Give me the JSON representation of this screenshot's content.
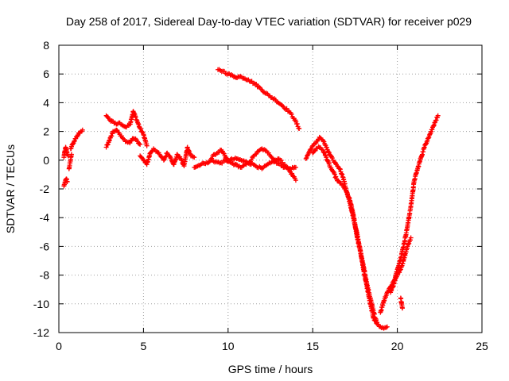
{
  "chart_data": {
    "type": "scatter",
    "title": "Day 258 of 2017, Sidereal Day-to-day VTEC variation (SDTVAR) for receiver p029",
    "xlabel": "GPS time / hours",
    "ylabel": "SDTVAR / TECUs",
    "xlim": [
      0,
      25
    ],
    "ylim": [
      -12,
      8
    ],
    "xticks": [
      0,
      5,
      10,
      15,
      20,
      25
    ],
    "yticks": [
      -12,
      -10,
      -8,
      -6,
      -4,
      -2,
      0,
      2,
      4,
      6,
      8
    ],
    "grid": true,
    "marker": "plus",
    "color": "#ff0000",
    "series": [
      {
        "name": "p029",
        "segments": [
          {
            "x": [
              0.3,
              0.35,
              0.4,
              0.45,
              0.5
            ],
            "y": [
              -1.8,
              -1.6,
              -1.4,
              -1.3,
              -1.5
            ]
          },
          {
            "x": [
              0.3,
              0.35,
              0.4,
              0.45,
              0.5,
              0.55
            ],
            "y": [
              0.2,
              0.6,
              0.9,
              0.7,
              0.4,
              0.3
            ]
          },
          {
            "x": [
              0.7,
              0.8,
              0.9,
              1.0,
              1.1,
              1.2,
              1.3,
              1.4
            ],
            "y": [
              0.8,
              1.1,
              1.3,
              1.5,
              1.7,
              1.9,
              2.0,
              2.1
            ]
          },
          {
            "x": [
              0.6,
              0.75
            ],
            "y": [
              -0.6,
              0.4
            ]
          },
          {
            "x": [
              2.8,
              3.0,
              3.2,
              3.4,
              3.6,
              3.8,
              4.0,
              4.2,
              4.4,
              4.6,
              4.8,
              5.0,
              5.2
            ],
            "y": [
              3.1,
              2.8,
              2.7,
              2.5,
              2.6,
              2.4,
              2.3,
              2.5,
              3.4,
              2.8,
              2.2,
              1.8,
              1.0
            ]
          },
          {
            "x": [
              2.8,
              3.0,
              3.2,
              3.4,
              3.6,
              3.8,
              4.0,
              4.2,
              4.4,
              4.6,
              4.8
            ],
            "y": [
              0.9,
              1.4,
              2.0,
              2.1,
              1.8,
              1.5,
              1.3,
              1.2,
              1.5,
              1.4,
              1.1
            ]
          },
          {
            "x": [
              4.8,
              5.0,
              5.2,
              5.4,
              5.6,
              5.8,
              6.0,
              6.2,
              6.4,
              6.6,
              6.8,
              7.0,
              7.2,
              7.4,
              7.6,
              7.8,
              8.0
            ],
            "y": [
              0.3,
              0.0,
              -0.3,
              0.5,
              0.8,
              0.6,
              0.3,
              0.0,
              0.5,
              0.2,
              -0.3,
              0.4,
              0.1,
              -0.4,
              0.9,
              0.3,
              0.2
            ]
          },
          {
            "x": [
              8.0,
              8.4,
              8.8,
              9.2,
              9.6,
              10.0,
              10.4,
              10.8,
              11.2,
              11.6,
              12.0,
              12.4,
              12.8,
              13.2,
              13.6,
              14.0
            ],
            "y": [
              -0.5,
              -0.3,
              -0.2,
              0.4,
              0.7,
              -0.1,
              -0.3,
              -0.5,
              -0.2,
              0.4,
              0.8,
              0.5,
              -0.1,
              -0.4,
              -0.6,
              -0.5
            ]
          },
          {
            "x": [
              9.0,
              9.5,
              10.0,
              10.5,
              11.0,
              11.5,
              12.0,
              12.5,
              13.0,
              13.5,
              14.0
            ],
            "y": [
              0.0,
              -0.2,
              0.0,
              0.1,
              -0.1,
              -0.3,
              -0.6,
              -0.2,
              0.1,
              -0.5,
              -1.4
            ]
          },
          {
            "x": [
              9.4,
              9.7,
              10.0,
              10.4,
              10.8,
              11.2,
              11.6,
              12.0,
              12.4,
              12.8,
              13.2,
              13.6,
              13.9,
              14.2
            ],
            "y": [
              6.3,
              6.2,
              6.0,
              5.8,
              5.8,
              5.6,
              5.3,
              4.9,
              4.5,
              4.2,
              3.8,
              3.4,
              2.9,
              2.2
            ]
          },
          {
            "x": [
              14.6,
              14.8,
              15.0,
              15.2,
              15.4,
              15.6,
              15.8,
              16.0,
              16.2,
              16.4,
              16.6,
              16.8,
              17.0,
              17.2,
              17.4,
              17.6,
              17.8,
              18.0,
              18.2,
              18.4,
              18.6,
              18.8,
              19.0,
              19.2,
              19.4
            ],
            "y": [
              0.1,
              0.6,
              1.0,
              1.2,
              1.6,
              1.4,
              0.9,
              0.4,
              0.0,
              -0.3,
              -0.6,
              -1.2,
              -2.2,
              -3.0,
              -4.0,
              -5.0,
              -6.2,
              -7.6,
              -8.8,
              -10.0,
              -11.0,
              -11.4,
              -11.6,
              -11.7,
              -11.6
            ]
          },
          {
            "x": [
              15.0,
              15.2,
              15.4,
              15.6,
              15.8,
              16.0,
              16.2,
              16.4,
              16.6,
              16.8,
              17.0,
              17.2,
              17.4,
              17.6,
              17.8,
              18.0,
              18.2,
              18.4,
              18.6,
              18.8
            ],
            "y": [
              0.5,
              0.8,
              0.9,
              0.7,
              0.2,
              -0.4,
              -0.8,
              -1.3,
              -1.6,
              -1.8,
              -2.2,
              -2.8,
              -3.8,
              -5.2,
              -6.3,
              -7.4,
              -8.6,
              -9.6,
              -10.6,
              -11.3
            ]
          },
          {
            "x": [
              19.0,
              19.2,
              19.4,
              19.6,
              19.8,
              20.0,
              20.2,
              20.4,
              20.6,
              20.8
            ],
            "y": [
              -10.6,
              -9.8,
              -9.2,
              -8.8,
              -8.4,
              -8.0,
              -7.6,
              -6.8,
              -6.0,
              -5.4
            ]
          },
          {
            "x": [
              19.6,
              19.8,
              20.0,
              20.2,
              20.4,
              20.6,
              20.8,
              21.0,
              21.2,
              21.4,
              21.6,
              21.8,
              22.0,
              22.2,
              22.4
            ],
            "y": [
              -9.2,
              -8.6,
              -7.6,
              -6.8,
              -5.8,
              -4.6,
              -3.2,
              -1.4,
              -0.6,
              0.2,
              0.9,
              1.5,
              2.0,
              2.6,
              3.1
            ]
          },
          {
            "x": [
              20.2,
              20.3
            ],
            "y": [
              -9.6,
              -10.3
            ]
          }
        ]
      }
    ]
  }
}
